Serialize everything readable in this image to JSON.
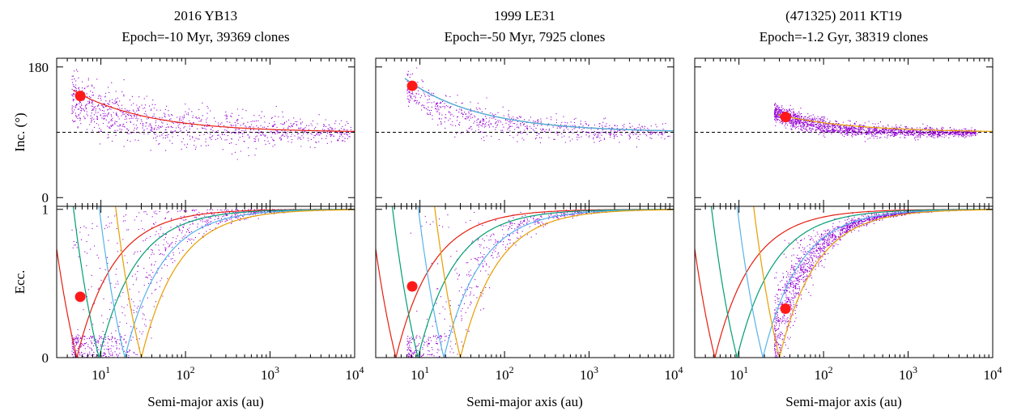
{
  "figure": {
    "panels": [
      {
        "name": "2016 YB13",
        "subtitle": "Epoch=-10 Myr, 39369 clones"
      },
      {
        "name": "1999 LE31",
        "subtitle": "Epoch=-50 Myr, 7925 clones"
      },
      {
        "name": "(471325) 2011 KT19",
        "subtitle": "Epoch=-1.2 Gyr, 38319 clones"
      }
    ],
    "ylabel_top": "Inc. (°)",
    "ylabel_bottom": "Ecc.",
    "xlabel": "Semi-major axis (au)",
    "yticks_top": [
      "180",
      "0"
    ],
    "yticks_bottom": [
      "1",
      "0"
    ]
  },
  "chart_data": {
    "type": "scatter",
    "x_scale": "log",
    "xlim": [
      3,
      10000
    ],
    "x_ticks": [
      10,
      100,
      1000,
      10000
    ],
    "inc_ylim": [
      -12,
      192
    ],
    "ecc_ylim": [
      0,
      1.02
    ],
    "reference_inclination": 90,
    "planet_semimajor_axes": [
      5.2,
      9.5,
      19.2,
      30.1
    ],
    "colors": {
      "clones": "#9400d3",
      "jupiter": "#e51e10",
      "saturn": "#009e73",
      "uranus": "#56b4e9",
      "neptune": "#e69f00",
      "object": "#ff1a1a",
      "reference_line": "#000000"
    },
    "panels": [
      {
        "object_a": 5.7,
        "object_i": 140,
        "object_e": 0.41,
        "cloud": {
          "a_min": 4.5,
          "a_max": 9000,
          "i_center": 90,
          "i_start": 140,
          "i_spread": 18,
          "peri_core": 14,
          "peri_spread": 9
        },
        "inc_curves": [
          "jupiter"
        ]
      },
      {
        "object_a": 8.1,
        "object_i": 154,
        "object_e": 0.48,
        "cloud": {
          "a_min": 7,
          "a_max": 9000,
          "i_center": 90,
          "i_start": 150,
          "i_spread": 12,
          "peri_core": 18,
          "peri_spread": 7
        },
        "inc_curves": [
          "jupiter",
          "saturn",
          "uranus"
        ]
      },
      {
        "object_a": 35.5,
        "object_i": 111,
        "object_e": 0.33,
        "cloud": {
          "a_min": 26,
          "a_max": 6500,
          "i_center": 89,
          "i_start": 118,
          "i_spread": 6,
          "peri_core": 23,
          "peri_spread": 5
        },
        "inc_curves": [
          "neptune"
        ]
      }
    ]
  }
}
